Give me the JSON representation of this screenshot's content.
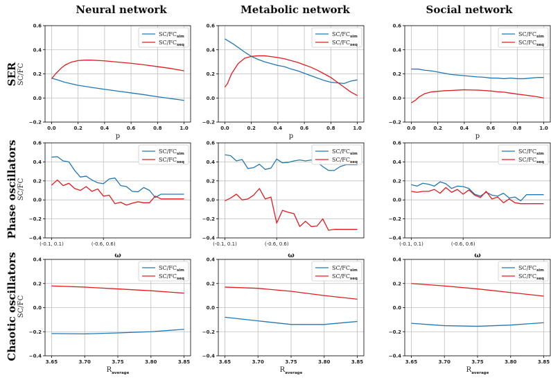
{
  "figure": {
    "col_titles": [
      "Neural network",
      "Metabolic network",
      "Social network"
    ],
    "row_titles": [
      {
        "title": "SER",
        "sub": "SC/FC"
      },
      {
        "title": "Phase oscillators",
        "sub": "SC/FC"
      },
      {
        "title": "Chaotic oscillators",
        "sub": "SC/FC"
      }
    ],
    "colors": {
      "sim": "#1f77b4",
      "seq": "#e31a1c",
      "grid": "#bdbdbd"
    },
    "legend": [
      {
        "base": "SC/FC",
        "sub": "sim",
        "color": "#1f77b4"
      },
      {
        "base": "SC/FC",
        "sub": "seq",
        "color": "#e31a1c"
      }
    ]
  },
  "chart_data": [
    {
      "type": "line",
      "row": 0,
      "col": 0,
      "xlabel": "p",
      "xlim": [
        0,
        1
      ],
      "ylim": [
        -0.2,
        0.6
      ],
      "x_ticks": [
        0.0,
        0.2,
        0.4,
        0.6,
        0.8,
        1.0
      ],
      "x_tick_labels": [
        "0.0",
        "0.2",
        "0.4",
        "0.6",
        "0.8",
        "1.0"
      ],
      "y_ticks": [
        -0.2,
        0.0,
        0.2,
        0.4,
        0.6
      ],
      "y_tick_labels": [
        "−0.2",
        "0.0",
        "0.2",
        "0.4",
        "0.6"
      ],
      "grid": true,
      "legend": "top-right",
      "series": [
        {
          "key": "sim",
          "x": [
            0,
            0.05,
            0.1,
            0.2,
            0.3,
            0.4,
            0.5,
            0.6,
            0.7,
            0.8,
            0.9,
            1.0
          ],
          "y": [
            0.165,
            0.148,
            0.13,
            0.105,
            0.088,
            0.072,
            0.057,
            0.042,
            0.027,
            0.01,
            -0.005,
            -0.02
          ]
        },
        {
          "key": "seq",
          "x": [
            0,
            0.03,
            0.07,
            0.1,
            0.15,
            0.2,
            0.25,
            0.3,
            0.4,
            0.5,
            0.6,
            0.7,
            0.8,
            0.9,
            1.0
          ],
          "y": [
            0.16,
            0.2,
            0.245,
            0.272,
            0.298,
            0.31,
            0.314,
            0.314,
            0.308,
            0.298,
            0.288,
            0.275,
            0.26,
            0.245,
            0.225
          ]
        }
      ]
    },
    {
      "type": "line",
      "row": 0,
      "col": 1,
      "xlabel": "p",
      "xlim": [
        0,
        1
      ],
      "ylim": [
        -0.2,
        0.6
      ],
      "x_ticks": [
        0.0,
        0.2,
        0.4,
        0.6,
        0.8,
        1.0
      ],
      "x_tick_labels": [
        "0.0",
        "0.2",
        "0.4",
        "0.6",
        "0.8",
        "1.0"
      ],
      "y_ticks": [
        -0.2,
        0.0,
        0.2,
        0.4,
        0.6
      ],
      "y_tick_labels": [
        "−0.2",
        "0.0",
        "0.2",
        "0.4",
        "0.6"
      ],
      "grid": true,
      "legend": "top-right",
      "series": [
        {
          "key": "sim",
          "x": [
            0,
            0.03,
            0.06,
            0.1,
            0.15,
            0.2,
            0.25,
            0.3,
            0.35,
            0.4,
            0.45,
            0.5,
            0.55,
            0.6,
            0.65,
            0.7,
            0.75,
            0.8,
            0.85,
            0.9,
            0.95,
            1.0
          ],
          "y": [
            0.49,
            0.47,
            0.45,
            0.42,
            0.38,
            0.345,
            0.32,
            0.3,
            0.285,
            0.27,
            0.26,
            0.24,
            0.225,
            0.205,
            0.185,
            0.165,
            0.145,
            0.13,
            0.125,
            0.12,
            0.14,
            0.15
          ]
        },
        {
          "key": "seq",
          "x": [
            0,
            0.02,
            0.05,
            0.1,
            0.15,
            0.2,
            0.25,
            0.3,
            0.35,
            0.4,
            0.45,
            0.5,
            0.55,
            0.6,
            0.65,
            0.7,
            0.75,
            0.8,
            0.85,
            0.9,
            0.95,
            1.0
          ],
          "y": [
            0.09,
            0.12,
            0.2,
            0.285,
            0.33,
            0.345,
            0.35,
            0.35,
            0.343,
            0.335,
            0.325,
            0.31,
            0.295,
            0.275,
            0.255,
            0.23,
            0.2,
            0.17,
            0.13,
            0.09,
            0.05,
            0.02
          ]
        }
      ]
    },
    {
      "type": "line",
      "row": 0,
      "col": 2,
      "xlabel": "p",
      "xlim": [
        0,
        1
      ],
      "ylim": [
        -0.2,
        0.6
      ],
      "x_ticks": [
        0.0,
        0.2,
        0.4,
        0.6,
        0.8,
        1.0
      ],
      "x_tick_labels": [
        "0.0",
        "0.2",
        "0.4",
        "0.6",
        "0.8",
        "1.0"
      ],
      "y_ticks": [
        -0.2,
        0.0,
        0.2,
        0.4,
        0.6
      ],
      "y_tick_labels": [
        "−0.2",
        "0.0",
        "0.2",
        "0.4",
        "0.6"
      ],
      "grid": true,
      "legend": "top-right",
      "series": [
        {
          "key": "sim",
          "x": [
            0,
            0.05,
            0.1,
            0.15,
            0.2,
            0.25,
            0.3,
            0.35,
            0.4,
            0.45,
            0.5,
            0.55,
            0.6,
            0.65,
            0.7,
            0.75,
            0.8,
            0.85,
            0.9,
            0.95,
            1.0
          ],
          "y": [
            0.24,
            0.24,
            0.23,
            0.225,
            0.215,
            0.205,
            0.195,
            0.19,
            0.185,
            0.18,
            0.175,
            0.172,
            0.165,
            0.165,
            0.16,
            0.165,
            0.16,
            0.16,
            0.165,
            0.17,
            0.17
          ]
        },
        {
          "key": "seq",
          "x": [
            0,
            0.03,
            0.06,
            0.1,
            0.15,
            0.2,
            0.25,
            0.3,
            0.35,
            0.4,
            0.45,
            0.5,
            0.55,
            0.6,
            0.65,
            0.7,
            0.75,
            0.8,
            0.85,
            0.9,
            0.95,
            1.0
          ],
          "y": [
            -0.04,
            -0.02,
            0.01,
            0.035,
            0.05,
            0.055,
            0.06,
            0.062,
            0.065,
            0.068,
            0.066,
            0.065,
            0.062,
            0.058,
            0.052,
            0.048,
            0.04,
            0.032,
            0.025,
            0.018,
            0.01,
            0.0
          ]
        }
      ]
    },
    {
      "type": "line",
      "row": 1,
      "col": 0,
      "xlabel": "ω",
      "xlim": [
        0,
        23
      ],
      "ylim": [
        -0.4,
        0.6
      ],
      "x_ticks": [
        0,
        9
      ],
      "x_tick_labels": [
        "(-0.1, 0.1)",
        "(-0.6, 0.6)"
      ],
      "y_ticks": [
        -0.4,
        -0.2,
        0.0,
        0.2,
        0.4,
        0.6
      ],
      "y_tick_labels": [
        "−0.4",
        "−0.2",
        "0.0",
        "0.2",
        "0.4",
        "0.6"
      ],
      "grid": true,
      "legend": "top-right",
      "series": [
        {
          "key": "sim",
          "x": [
            0,
            1,
            2,
            3,
            4,
            5,
            6,
            7,
            8,
            9,
            10,
            11,
            12,
            13,
            14,
            15,
            16,
            17,
            18,
            19,
            20,
            21,
            22,
            23
          ],
          "y": [
            0.45,
            0.455,
            0.41,
            0.4,
            0.31,
            0.24,
            0.25,
            0.21,
            0.18,
            0.17,
            0.22,
            0.23,
            0.15,
            0.14,
            0.09,
            0.085,
            0.13,
            0.1,
            0.025,
            0.06,
            0.06,
            0.06,
            0.06,
            0.06
          ]
        },
        {
          "key": "seq",
          "x": [
            0,
            1,
            2,
            3,
            4,
            5,
            6,
            7,
            8,
            9,
            10,
            11,
            12,
            13,
            14,
            15,
            16,
            17,
            18,
            19,
            20,
            21,
            22,
            23
          ],
          "y": [
            0.155,
            0.21,
            0.15,
            0.175,
            0.12,
            0.1,
            0.14,
            0.09,
            0.115,
            0.04,
            0.05,
            -0.04,
            -0.025,
            -0.055,
            -0.035,
            -0.02,
            -0.03,
            -0.03,
            0.04,
            0.01,
            0.01,
            0.01,
            0.01,
            0.01
          ]
        }
      ]
    },
    {
      "type": "line",
      "row": 1,
      "col": 1,
      "xlabel": "ω",
      "xlim": [
        0,
        23
      ],
      "ylim": [
        -0.4,
        0.6
      ],
      "x_ticks": [
        0,
        9
      ],
      "x_tick_labels": [
        "(-0.1, 0.1)",
        "(-0.6, 0.6)"
      ],
      "y_ticks": [
        -0.4,
        -0.2,
        0.0,
        0.2,
        0.4,
        0.6
      ],
      "y_tick_labels": [
        "−0.4",
        "−0.2",
        "0.0",
        "0.2",
        "0.4",
        "0.6"
      ],
      "grid": true,
      "legend": "top-right",
      "series": [
        {
          "key": "sim",
          "x": [
            0,
            1,
            2,
            3,
            4,
            5,
            6,
            7,
            8,
            9,
            10,
            11,
            12,
            13,
            14,
            15,
            16,
            17,
            18,
            19,
            20,
            21,
            22,
            23
          ],
          "y": [
            0.475,
            0.465,
            0.41,
            0.425,
            0.33,
            0.34,
            0.375,
            0.32,
            0.335,
            0.43,
            0.39,
            0.395,
            0.41,
            0.42,
            0.41,
            0.42,
            0.4,
            0.35,
            0.31,
            0.31,
            0.35,
            0.37,
            0.37,
            0.37
          ]
        },
        {
          "key": "seq",
          "x": [
            0,
            1,
            2,
            3,
            4,
            5,
            6,
            7,
            8,
            9,
            10,
            11,
            12,
            13,
            14,
            15,
            16,
            17,
            18,
            19,
            20,
            21,
            22,
            23
          ],
          "y": [
            -0.01,
            0.02,
            0.06,
            0.0,
            0.01,
            0.05,
            0.12,
            0.01,
            0.03,
            -0.245,
            -0.11,
            -0.13,
            -0.145,
            -0.28,
            -0.225,
            -0.28,
            -0.275,
            -0.2,
            -0.32,
            -0.31,
            -0.31,
            -0.31,
            -0.31,
            -0.31
          ]
        }
      ]
    },
    {
      "type": "line",
      "row": 1,
      "col": 2,
      "xlabel": "ω",
      "xlim": [
        0,
        23
      ],
      "ylim": [
        -0.4,
        0.6
      ],
      "x_ticks": [
        0,
        9
      ],
      "x_tick_labels": [
        "(-0.1, 0.1)",
        "(-0.6, 0.6)"
      ],
      "y_ticks": [
        -0.4,
        -0.2,
        0.0,
        0.2,
        0.4,
        0.6
      ],
      "y_tick_labels": [
        "−0.4",
        "−0.2",
        "0.0",
        "0.2",
        "0.4",
        "0.6"
      ],
      "grid": true,
      "legend": "top-right",
      "series": [
        {
          "key": "sim",
          "x": [
            0,
            1,
            2,
            3,
            4,
            5,
            6,
            7,
            8,
            9,
            10,
            11,
            12,
            13,
            14,
            15,
            16,
            17,
            18,
            19,
            20,
            21,
            22,
            23
          ],
          "y": [
            0.16,
            0.145,
            0.175,
            0.165,
            0.145,
            0.19,
            0.17,
            0.12,
            0.145,
            0.14,
            0.12,
            0.06,
            0.04,
            0.08,
            0.05,
            0.04,
            0.07,
            0.02,
            0.03,
            -0.01,
            0.055,
            0.055,
            0.055,
            0.055
          ]
        },
        {
          "key": "seq",
          "x": [
            0,
            1,
            2,
            3,
            4,
            5,
            6,
            7,
            8,
            9,
            10,
            11,
            12,
            13,
            14,
            15,
            16,
            17,
            18,
            19,
            20,
            21,
            22,
            23
          ],
          "y": [
            0.09,
            0.08,
            0.09,
            0.09,
            0.11,
            0.07,
            0.13,
            0.08,
            0.11,
            0.06,
            0.105,
            0.05,
            0.025,
            0.09,
            0.01,
            0.03,
            -0.03,
            0.01,
            -0.03,
            -0.04,
            -0.04,
            -0.04,
            -0.04,
            -0.04
          ]
        }
      ]
    },
    {
      "type": "line",
      "row": 2,
      "col": 0,
      "xlabel": "R",
      "xlabel_sub": "average",
      "xlim": [
        3.65,
        3.85
      ],
      "ylim": [
        -0.4,
        0.4
      ],
      "x_ticks": [
        3.65,
        3.7,
        3.75,
        3.8,
        3.85
      ],
      "x_tick_labels": [
        "3.65",
        "3.70",
        "3.75",
        "3.80",
        "3.85"
      ],
      "y_ticks": [
        -0.4,
        -0.2,
        0.0,
        0.2,
        0.4
      ],
      "y_tick_labels": [
        "−0.4",
        "−0.2",
        "0.0",
        "0.2",
        "0.4"
      ],
      "grid": true,
      "legend": "top-right",
      "series": [
        {
          "key": "sim",
          "x": [
            3.65,
            3.7,
            3.75,
            3.8,
            3.85
          ],
          "y": [
            -0.215,
            -0.218,
            -0.21,
            -0.2,
            -0.18
          ]
        },
        {
          "key": "seq",
          "x": [
            3.65,
            3.7,
            3.75,
            3.8,
            3.85
          ],
          "y": [
            0.18,
            0.17,
            0.155,
            0.14,
            0.12
          ]
        }
      ]
    },
    {
      "type": "line",
      "row": 2,
      "col": 1,
      "xlabel": "R",
      "xlabel_sub": "average",
      "xlim": [
        3.65,
        3.85
      ],
      "ylim": [
        -0.4,
        0.4
      ],
      "x_ticks": [
        3.65,
        3.7,
        3.75,
        3.8,
        3.85
      ],
      "x_tick_labels": [
        "3.65",
        "3.70",
        "3.75",
        "3.80",
        "3.85"
      ],
      "y_ticks": [
        -0.4,
        -0.2,
        0.0,
        0.2,
        0.4
      ],
      "y_tick_labels": [
        "−0.4",
        "−0.2",
        "0.0",
        "0.2",
        "0.4"
      ],
      "grid": true,
      "legend": "top-right",
      "series": [
        {
          "key": "sim",
          "x": [
            3.65,
            3.7,
            3.75,
            3.8,
            3.85
          ],
          "y": [
            -0.08,
            -0.11,
            -0.14,
            -0.14,
            -0.115
          ]
        },
        {
          "key": "seq",
          "x": [
            3.65,
            3.7,
            3.75,
            3.8,
            3.85
          ],
          "y": [
            0.17,
            0.16,
            0.135,
            0.1,
            0.07
          ]
        }
      ]
    },
    {
      "type": "line",
      "row": 2,
      "col": 2,
      "xlabel": "R",
      "xlabel_sub": "average",
      "xlim": [
        3.65,
        3.85
      ],
      "ylim": [
        -0.4,
        0.4
      ],
      "x_ticks": [
        3.65,
        3.7,
        3.75,
        3.8,
        3.85
      ],
      "x_tick_labels": [
        "3.65",
        "3.70",
        "3.75",
        "3.80",
        "3.85"
      ],
      "y_ticks": [
        -0.4,
        -0.2,
        0.0,
        0.2,
        0.4
      ],
      "y_tick_labels": [
        "−0.4",
        "−0.2",
        "0.0",
        "0.2",
        "0.4"
      ],
      "grid": true,
      "legend": "top-right",
      "series": [
        {
          "key": "sim",
          "x": [
            3.65,
            3.7,
            3.75,
            3.8,
            3.85
          ],
          "y": [
            -0.13,
            -0.15,
            -0.155,
            -0.145,
            -0.125
          ]
        },
        {
          "key": "seq",
          "x": [
            3.65,
            3.7,
            3.75,
            3.8,
            3.85
          ],
          "y": [
            0.2,
            0.18,
            0.155,
            0.125,
            0.095
          ]
        }
      ]
    }
  ]
}
